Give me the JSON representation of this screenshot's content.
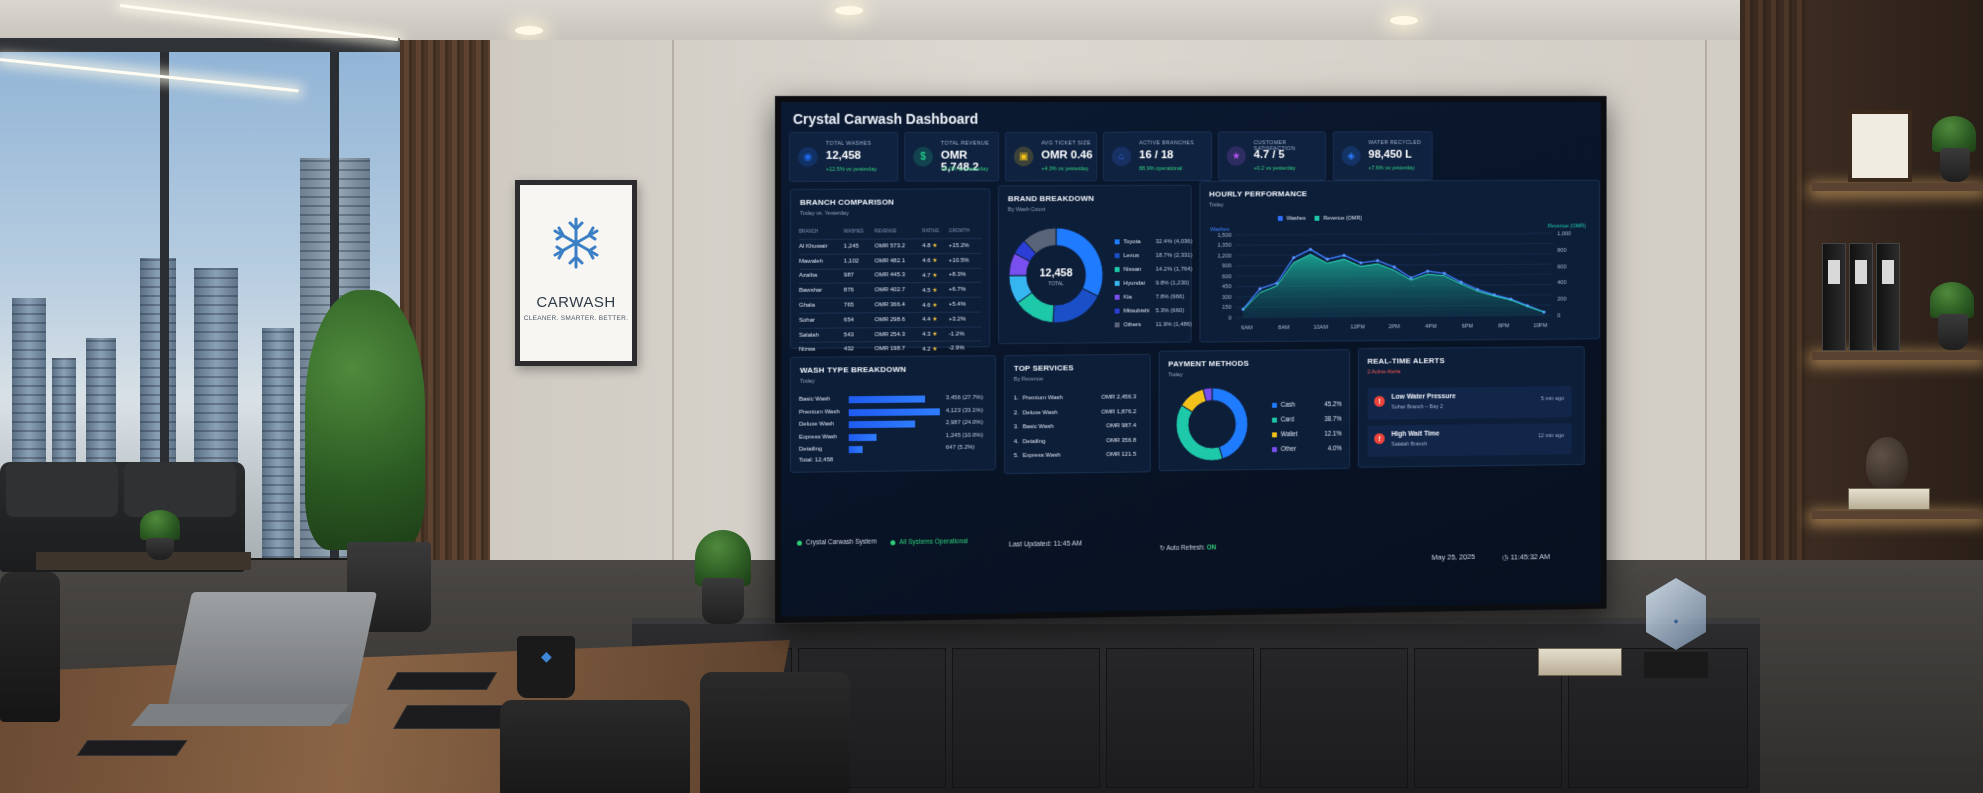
{
  "poster": {
    "title": "CARWASH",
    "tagline": "CLEANER. SMARTER. BETTER."
  },
  "dashboard": {
    "title": "Crystal Carwash Dashboard",
    "kpis": [
      {
        "label": "Total Washes",
        "value": "12,458",
        "delta": "+12.5% vs yesterday",
        "icon": "wash-icon",
        "color": "#1e6cf5"
      },
      {
        "label": "Total Revenue",
        "value": "OMR 5,748.2",
        "delta": "+9.2% vs yesterday",
        "icon": "revenue-icon",
        "color": "#1ec98b"
      },
      {
        "label": "Avg Ticket Size",
        "value": "OMR 0.46",
        "delta": "+4.3% vs yesterday",
        "icon": "ticket-icon",
        "color": "#f2c21b"
      },
      {
        "label": "Active Branches",
        "value": "16 / 18",
        "delta": "88.9% operational",
        "icon": "branch-icon",
        "color": "#3b6cf0"
      },
      {
        "label": "Customer Satisfaction",
        "value": "4.7 / 5",
        "delta": "+0.2 vs yesterday",
        "icon": "satisfaction-icon",
        "color": "#b054f0"
      },
      {
        "label": "Water Recycled",
        "value": "98,450 L",
        "delta": "+7.6% vs yesterday",
        "icon": "water-icon",
        "color": "#2a7cff"
      }
    ],
    "branch_comparison": {
      "title": "BRANCH COMPARISON",
      "subtitle": "Today vs. Yesterday",
      "columns": [
        "BRANCH",
        "WASHES",
        "REVENUE",
        "RATING",
        "GROWTH"
      ],
      "rows": [
        {
          "branch": "Al Khuwair",
          "washes": "1,245",
          "revenue": "OMR 573.2",
          "rating": "4.8",
          "growth": "+15.2%",
          "dir": "up"
        },
        {
          "branch": "Mawaleh",
          "washes": "1,102",
          "revenue": "OMR 482.1",
          "rating": "4.6",
          "growth": "+10.5%",
          "dir": "up"
        },
        {
          "branch": "Azaiba",
          "washes": "987",
          "revenue": "OMR 445.3",
          "rating": "4.7",
          "growth": "+8.3%",
          "dir": "up"
        },
        {
          "branch": "Bawshar",
          "washes": "876",
          "revenue": "OMR 402.7",
          "rating": "4.5",
          "growth": "+6.7%",
          "dir": "up"
        },
        {
          "branch": "Ghala",
          "washes": "765",
          "revenue": "OMR 366.4",
          "rating": "4.6",
          "growth": "+5.4%",
          "dir": "up"
        },
        {
          "branch": "Sohar",
          "washes": "654",
          "revenue": "OMR 298.6",
          "rating": "4.4",
          "growth": "+3.2%",
          "dir": "up"
        },
        {
          "branch": "Salalah",
          "washes": "543",
          "revenue": "OMR 254.3",
          "rating": "4.3",
          "growth": "-1.2%",
          "dir": "down"
        },
        {
          "branch": "Nizwa",
          "washes": "432",
          "revenue": "OMR 198.7",
          "rating": "4.2",
          "growth": "-2.9%",
          "dir": "down"
        }
      ]
    },
    "brand_breakdown": {
      "title": "BRAND BREAKDOWN",
      "subtitle": "By Wash Count",
      "center_value": "12,458",
      "center_label": "TOTAL"
    },
    "hourly_performance": {
      "title": "HOURLY PERFORMANCE",
      "subtitle": "Today",
      "legend_washes": "Washes",
      "legend_revenue": "Revenue (OMR)",
      "left_axis_title": "Washes",
      "right_axis_title": "Revenue (OMR)"
    },
    "wash_type": {
      "title": "WASH TYPE BREAKDOWN",
      "subtitle": "Today",
      "rows": [
        {
          "label": "Basic Wash",
          "value": "3,456 (27.7%)",
          "share": 0.277
        },
        {
          "label": "Premium Wash",
          "value": "4,123 (33.1%)",
          "share": 0.331
        },
        {
          "label": "Deluxe Wash",
          "value": "2,987 (24.0%)",
          "share": 0.24
        },
        {
          "label": "Express Wash",
          "value": "1,245 (10.0%)",
          "share": 0.1
        },
        {
          "label": "Detailing",
          "value": "647 (5.2%)",
          "share": 0.052
        }
      ],
      "total": "Total: 12,458"
    },
    "top_services": {
      "title": "TOP SERVICES",
      "subtitle": "By Revenue",
      "rows": [
        {
          "rank": "1.",
          "name": "Premium Wash",
          "value": "OMR 2,456.3"
        },
        {
          "rank": "2.",
          "name": "Deluxe Wash",
          "value": "OMR 1,876.2"
        },
        {
          "rank": "3.",
          "name": "Basic Wash",
          "value": "OMR 987.4"
        },
        {
          "rank": "4.",
          "name": "Detailing",
          "value": "OMR 356.8"
        },
        {
          "rank": "5.",
          "name": "Express Wash",
          "value": "OMR 121.5"
        }
      ]
    },
    "payment_methods": {
      "title": "PAYMENT METHODS",
      "subtitle": "Today"
    },
    "alerts": {
      "title": "REAL-TIME ALERTS",
      "count": "2 Active Alerts",
      "items": [
        {
          "title": "Low Water Pressure",
          "location": "Sohar Branch – Bay 2",
          "time": "5 min ago",
          "icon": "warning-icon"
        },
        {
          "title": "High Wait Time",
          "location": "Salalah Branch",
          "time": "12 min ago",
          "icon": "alert-icon"
        }
      ]
    },
    "footer": {
      "system": "Crystal Carwash System",
      "status": "All Systems Operational",
      "updated": "Last Updated: 11:45 AM",
      "auto_refresh_label": "Auto Refresh:",
      "auto_refresh_value": "ON",
      "date": "May 25, 2025",
      "time": "11:45:32 AM"
    }
  },
  "chart_data": [
    {
      "type": "pie",
      "subtitle": "By Wash Count",
      "categories": [
        "Toyota",
        "Lexus",
        "Nissan",
        "Hyundai",
        "Kia",
        "Mitsubishi",
        "Others"
      ],
      "values": [
        32.4,
        18.7,
        14.2,
        9.8,
        7.8,
        5.3,
        11.9
      ],
      "counts": [
        "4,036",
        "2,331",
        "1,764",
        "1,230",
        "966",
        "660",
        "1,486"
      ],
      "colors": [
        "#1f7bff",
        "#1b4fc7",
        "#1ec9a9",
        "#35b6f0",
        "#7a4ff0",
        "#2b3ed6",
        "#5a6478"
      ]
    },
    {
      "type": "line",
      "subtitle": "Today",
      "x_ticks": [
        "6AM",
        "8AM",
        "10AM",
        "12PM",
        "2PM",
        "4PM",
        "6PM",
        "8PM",
        "10PM"
      ],
      "y_ticks": [
        "1,500",
        "1,350",
        "1,200",
        "900",
        "600",
        "450",
        "300",
        "150",
        "0"
      ],
      "y2_ticks": [
        "1,000",
        "800",
        "600",
        "400",
        "200",
        "0"
      ],
      "ylim": [
        0,
        1500
      ],
      "y2lim": [
        0,
        1000
      ],
      "series": [
        {
          "name": "Washes",
          "axis": "left",
          "values": [
            150,
            520,
            620,
            1080,
            1230,
            1050,
            1120,
            980,
            1020,
            900,
            700,
            820,
            780,
            620,
            480,
            380,
            300,
            180,
            60
          ]
        },
        {
          "name": "Revenue (OMR)",
          "axis": "right",
          "values": [
            90,
            300,
            380,
            660,
            760,
            650,
            700,
            610,
            640,
            560,
            440,
            510,
            490,
            390,
            300,
            240,
            190,
            110,
            40
          ]
        }
      ]
    },
    {
      "type": "pie",
      "subtitle": "Today",
      "categories": [
        "Cash",
        "Card",
        "Wallet",
        "Other"
      ],
      "values": [
        45.2,
        38.7,
        12.1,
        4.0
      ],
      "colors": [
        "#1f7bff",
        "#1ec9a9",
        "#f2c21b",
        "#7a4ff0"
      ]
    }
  ]
}
